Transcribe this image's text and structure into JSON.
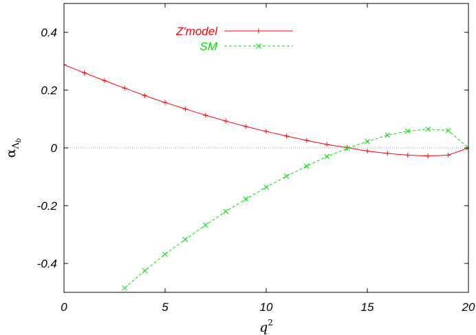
{
  "chart_data": {
    "type": "line",
    "title": "",
    "xlabel": "q",
    "xlabel_superscript": "2",
    "ylabel": "α",
    "ylabel_subscript": "Λ",
    "ylabel_subsubscript": "b",
    "xlim": [
      0,
      20
    ],
    "ylim": [
      -0.5,
      0.5
    ],
    "xticks": [
      0,
      5,
      10,
      15,
      20
    ],
    "xtick_labels": [
      "0",
      "5",
      "10",
      "15",
      "20"
    ],
    "yticks": [
      -0.4,
      -0.2,
      0,
      0.2,
      0.4
    ],
    "ytick_labels": [
      "-0.4",
      "-0.2",
      "0",
      "0.2",
      "0.4"
    ],
    "grid": false,
    "zero_line": true,
    "legend_position": "top-left",
    "series": [
      {
        "name": "Z'model",
        "color": "#ff0000",
        "dash": "solid",
        "marker": "plus",
        "x": [
          0,
          1,
          2,
          3,
          4,
          5,
          6,
          7,
          8,
          9,
          10,
          11,
          12,
          13,
          14,
          15,
          16,
          17,
          18,
          19,
          20
        ],
        "y": [
          0.288,
          0.26,
          0.233,
          0.207,
          0.181,
          0.157,
          0.135,
          0.113,
          0.093,
          0.074,
          0.057,
          0.041,
          0.026,
          0.012,
          0.001,
          -0.011,
          -0.019,
          -0.025,
          -0.028,
          -0.025,
          0.0
        ]
      },
      {
        "name": "SM",
        "color": "#00dd00",
        "dash": "dashed",
        "marker": "cross",
        "x": [
          3,
          4,
          5,
          6,
          7,
          8,
          9,
          10,
          11,
          12,
          13,
          14,
          15,
          16,
          17,
          18,
          19,
          20
        ],
        "y": [
          -0.485,
          -0.425,
          -0.368,
          -0.317,
          -0.267,
          -0.22,
          -0.177,
          -0.136,
          -0.098,
          -0.063,
          -0.03,
          -0.002,
          0.022,
          0.044,
          0.058,
          0.065,
          0.06,
          0.0
        ]
      }
    ]
  }
}
